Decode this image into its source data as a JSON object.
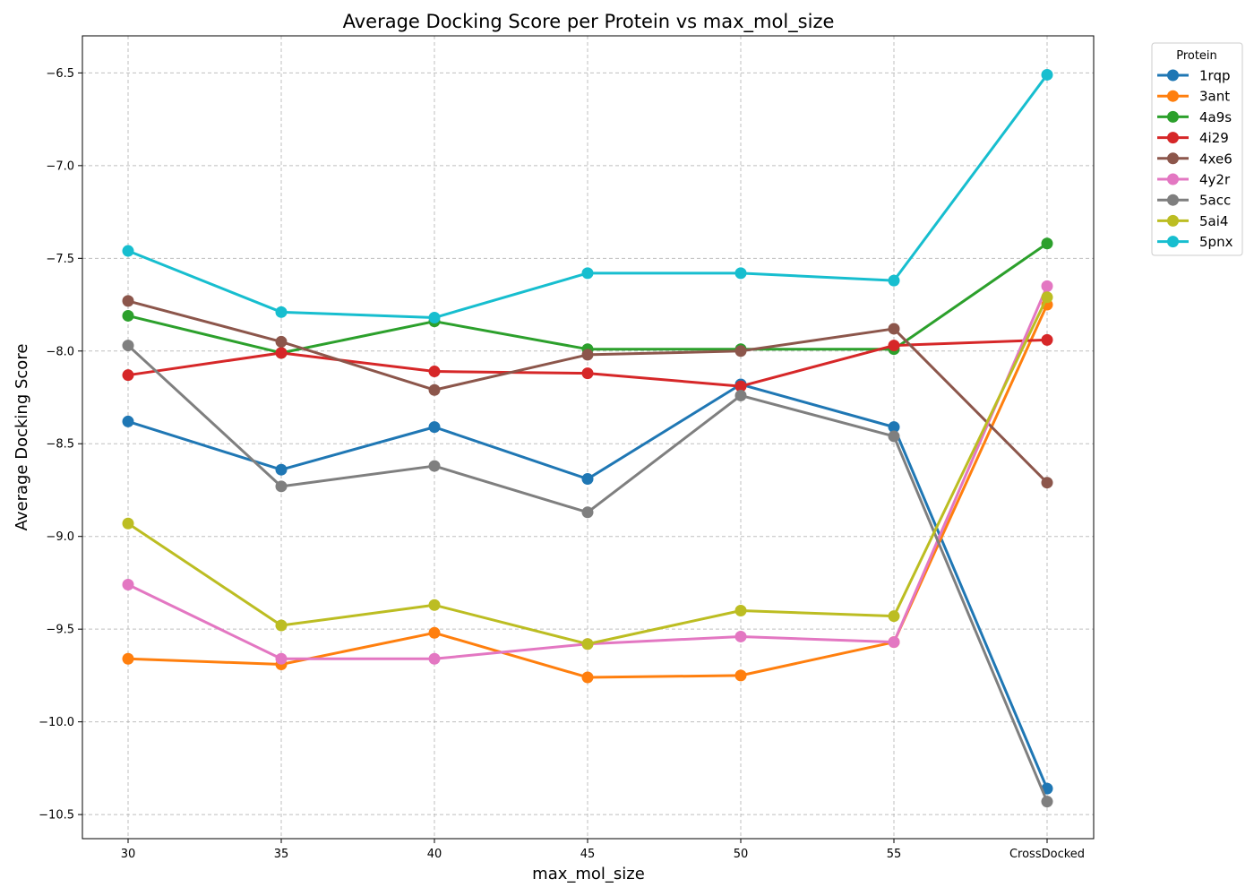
{
  "chart_data": {
    "type": "line",
    "title": "Average Docking Score per Protein vs max_mol_size",
    "xlabel": "max_mol_size",
    "ylabel": "Average Docking Score",
    "categories": [
      "30",
      "35",
      "40",
      "45",
      "50",
      "55",
      "CrossDocked"
    ],
    "ylim": [
      -10.63,
      -6.3
    ],
    "yticks": [
      -6.5,
      -7.0,
      -7.5,
      -8.0,
      -8.5,
      -9.0,
      -9.5,
      -10.0,
      -10.5
    ],
    "ytick_labels": [
      "−6.5",
      "−7.0",
      "−7.5",
      "−8.0",
      "−8.5",
      "−9.0",
      "−9.5",
      "−10.0",
      "−10.5"
    ],
    "grid": true,
    "legend": {
      "title": "Protein",
      "position": "outside-top-right"
    },
    "series": [
      {
        "name": "1rqp",
        "color": "#1f77b4",
        "values": [
          -8.38,
          -8.64,
          -8.41,
          -8.69,
          -8.18,
          -8.41,
          -10.36
        ]
      },
      {
        "name": "3ant",
        "color": "#ff7f0e",
        "values": [
          -9.66,
          -9.69,
          -9.52,
          -9.76,
          -9.75,
          -9.57,
          -7.75
        ]
      },
      {
        "name": "4a9s",
        "color": "#2ca02c",
        "values": [
          -7.81,
          -8.01,
          -7.84,
          -7.99,
          -7.99,
          -7.99,
          -7.42
        ]
      },
      {
        "name": "4i29",
        "color": "#d62728",
        "values": [
          -8.13,
          -8.01,
          -8.11,
          -8.12,
          -8.19,
          -7.97,
          -7.94
        ]
      },
      {
        "name": "4xe6",
        "color": "#8c564b",
        "values": [
          -7.73,
          -7.95,
          -8.21,
          -8.02,
          -8.0,
          -7.88,
          -8.71
        ]
      },
      {
        "name": "4y2r",
        "color": "#e377c2",
        "values": [
          -9.26,
          -9.66,
          -9.66,
          -9.58,
          -9.54,
          -9.57,
          -7.65
        ]
      },
      {
        "name": "5acc",
        "color": "#7f7f7f",
        "values": [
          -7.97,
          -8.73,
          -8.62,
          -8.87,
          -8.24,
          -8.46,
          -10.43
        ]
      },
      {
        "name": "5ai4",
        "color": "#bcbd22",
        "values": [
          -8.93,
          -9.48,
          -9.37,
          -9.58,
          -9.4,
          -9.43,
          -7.71
        ]
      },
      {
        "name": "5pnx",
        "color": "#17becf",
        "values": [
          -7.46,
          -7.79,
          -7.82,
          -7.58,
          -7.58,
          -7.62,
          -6.51
        ]
      }
    ]
  }
}
